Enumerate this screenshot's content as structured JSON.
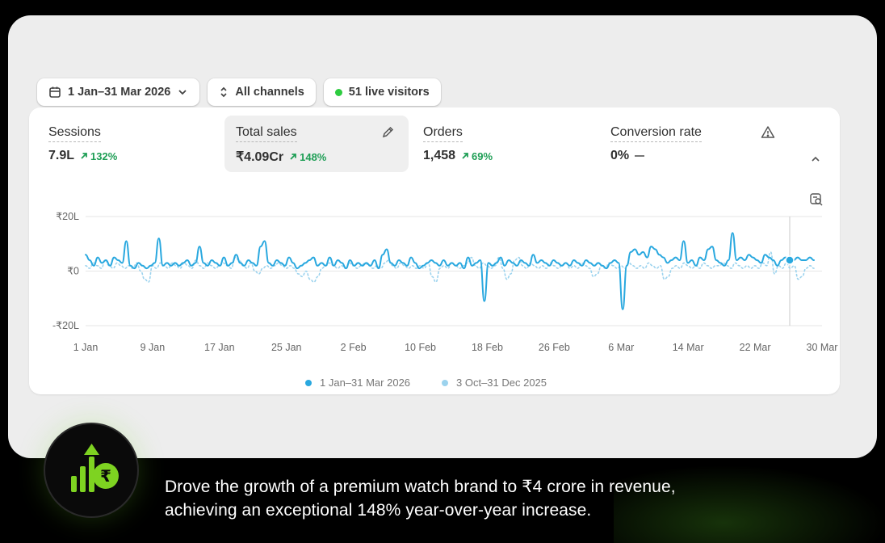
{
  "filters": {
    "date_range": "1 Jan–31 Mar 2026",
    "channels": "All channels",
    "live_visitors": "51 live visitors"
  },
  "metrics": [
    {
      "label": "Sessions",
      "value": "7.9L",
      "change": "132%",
      "trend": "up"
    },
    {
      "label": "Total sales",
      "value": "₹4.09Cr",
      "change": "148%",
      "trend": "up"
    },
    {
      "label": "Orders",
      "value": "1,458",
      "change": "69%",
      "trend": "up"
    },
    {
      "label": "Conversion rate",
      "value": "0%",
      "change": "",
      "trend": "flat"
    }
  ],
  "colors": {
    "current": "#29a8df",
    "previous": "#9cd3ee",
    "positive": "#1e9e55",
    "live": "#2ecc40",
    "accent_green": "#7ed321"
  },
  "icons": {
    "date": "calendar-icon",
    "date_dropdown": "chevron-down-icon",
    "channels": "up-down-chevron-icon",
    "edit": "pencil-icon",
    "warning": "warning-icon",
    "collapse": "chevron-up-icon",
    "chart_tool": "chart-search-icon",
    "badge": "rupee-growth-icon"
  },
  "chart_data": {
    "type": "line",
    "y_ticks": [
      "₹20L",
      "₹0",
      "-₹20L"
    ],
    "ylim": [
      -20,
      20
    ],
    "x_ticks": [
      "1 Jan",
      "9 Jan",
      "17 Jan",
      "25 Jan",
      "2 Feb",
      "10 Feb",
      "18 Feb",
      "26 Feb",
      "6 Mar",
      "14 Mar",
      "22 Mar",
      "30 Mar"
    ],
    "grid": true,
    "legend_position": "bottom",
    "series": [
      {
        "name": "1 Jan–31 Mar 2026",
        "style": "solid",
        "values": [
          6,
          4,
          2,
          5,
          3,
          4,
          2,
          5,
          4,
          3,
          11,
          2,
          1,
          3,
          2,
          1,
          2,
          3,
          12,
          2,
          3,
          2,
          3,
          2,
          3,
          4,
          2,
          3,
          9,
          3,
          2,
          4,
          3,
          2,
          5,
          2,
          3,
          6,
          3,
          2,
          4,
          3,
          2,
          9,
          11,
          3,
          2,
          4,
          3,
          2,
          5,
          3,
          1,
          2,
          3,
          4,
          5,
          2,
          3,
          2,
          5,
          2,
          4,
          3,
          1,
          4,
          2,
          3,
          2,
          3,
          2,
          4,
          1,
          6,
          8,
          3,
          2,
          4,
          3,
          2,
          5,
          3,
          1,
          2,
          3,
          4,
          3,
          2,
          4,
          2,
          3,
          2,
          3,
          1,
          5,
          2,
          3,
          4,
          -11,
          3,
          2,
          3,
          5,
          2,
          4,
          3,
          2,
          4,
          3,
          2,
          6,
          3,
          4,
          3,
          2,
          4,
          3,
          2,
          3,
          2,
          4,
          3,
          2,
          4,
          3,
          2,
          3,
          2,
          1,
          3,
          4,
          3,
          -14,
          2,
          7,
          8,
          6,
          7,
          5,
          9,
          8,
          6,
          5,
          3,
          4,
          5,
          4,
          11,
          3,
          4,
          2,
          5,
          4,
          8,
          9,
          4,
          3,
          2,
          4,
          14,
          4,
          5,
          4,
          6,
          5,
          4,
          3,
          6,
          5,
          4,
          2,
          4,
          5,
          4,
          4,
          5,
          4,
          4,
          5,
          4
        ]
      },
      {
        "name": "3 Oct–31 Dec 2025",
        "style": "dotted",
        "values": [
          2,
          1,
          3,
          2,
          1,
          4,
          2,
          1,
          3,
          2,
          1,
          2,
          1,
          3,
          0,
          -3,
          -4,
          2,
          1,
          3,
          2,
          1,
          3,
          2,
          1,
          3,
          2,
          1,
          4,
          2,
          1,
          3,
          2,
          1,
          2,
          3,
          2,
          1,
          5,
          4,
          2,
          1,
          3,
          0,
          -1,
          1,
          2,
          1,
          2,
          3,
          2,
          1,
          2,
          1,
          -1,
          -2,
          0,
          -3,
          -4,
          -2,
          1,
          2,
          3,
          2,
          1,
          2,
          1,
          3,
          2,
          1,
          2,
          3,
          2,
          1,
          2,
          1,
          3,
          4,
          2,
          1,
          3,
          2,
          1,
          2,
          1,
          2,
          1,
          3,
          -2,
          -4,
          1,
          2,
          1,
          3,
          2,
          1,
          2,
          3,
          5,
          2,
          1,
          3,
          2,
          1,
          2,
          5,
          1,
          -3,
          -1,
          4,
          5,
          2,
          1,
          3,
          2,
          1,
          2,
          1,
          3,
          2,
          1,
          2,
          3,
          1,
          2,
          1,
          3,
          2,
          1,
          -2,
          -1,
          2,
          1,
          3,
          2,
          1,
          2,
          1,
          3,
          2,
          1,
          2,
          1,
          3,
          2,
          1,
          2,
          -3,
          -2,
          1,
          2,
          1,
          3,
          2,
          1,
          2,
          1,
          3,
          2,
          1,
          2,
          2,
          3,
          2,
          1,
          3,
          2,
          1,
          2,
          1,
          2,
          1,
          3,
          2,
          7,
          -1,
          2,
          1,
          3,
          1,
          2,
          -3,
          -2,
          1,
          2,
          1
        ]
      }
    ]
  },
  "caption": {
    "line1": "Drove the growth of a premium watch brand to ₹4 crore in revenue,",
    "line2": "achieving an exceptional 148% year-over-year increase."
  }
}
